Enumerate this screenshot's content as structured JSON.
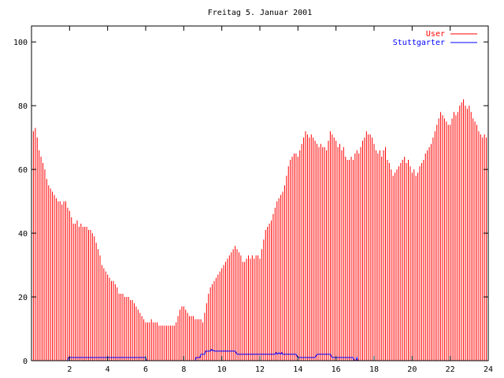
{
  "chart_data": {
    "type": "bar",
    "title": "Freitag 5. Januar 2001",
    "xlabel": "",
    "ylabel": "",
    "xlim": [
      0,
      24
    ],
    "ylim": [
      0,
      105
    ],
    "x_ticks": [
      2,
      4,
      6,
      8,
      10,
      12,
      14,
      16,
      18,
      20,
      22,
      24
    ],
    "y_ticks": [
      0,
      20,
      40,
      60,
      80,
      100
    ],
    "grid": false,
    "legend_position": "top-right",
    "series": [
      {
        "name": "User",
        "color": "#ff0000",
        "style": "impulses",
        "points": [
          [
            0.0,
            77
          ],
          [
            0.1,
            72
          ],
          [
            0.2,
            73
          ],
          [
            0.3,
            70
          ],
          [
            0.4,
            66
          ],
          [
            0.5,
            64
          ],
          [
            0.6,
            62
          ],
          [
            0.7,
            60
          ],
          [
            0.8,
            57
          ],
          [
            0.9,
            55
          ],
          [
            1.0,
            54
          ],
          [
            1.1,
            53
          ],
          [
            1.2,
            52
          ],
          [
            1.3,
            51
          ],
          [
            1.4,
            50
          ],
          [
            1.5,
            50
          ],
          [
            1.6,
            49
          ],
          [
            1.7,
            50
          ],
          [
            1.8,
            50
          ],
          [
            1.9,
            48
          ],
          [
            2.0,
            47
          ],
          [
            2.1,
            45
          ],
          [
            2.2,
            43
          ],
          [
            2.3,
            43
          ],
          [
            2.4,
            44
          ],
          [
            2.5,
            42
          ],
          [
            2.6,
            43
          ],
          [
            2.7,
            42
          ],
          [
            2.8,
            42
          ],
          [
            2.9,
            42
          ],
          [
            3.0,
            41
          ],
          [
            3.1,
            41
          ],
          [
            3.2,
            40
          ],
          [
            3.3,
            39
          ],
          [
            3.4,
            37
          ],
          [
            3.5,
            35
          ],
          [
            3.6,
            33
          ],
          [
            3.7,
            30
          ],
          [
            3.8,
            29
          ],
          [
            3.9,
            28
          ],
          [
            4.0,
            27
          ],
          [
            4.1,
            26
          ],
          [
            4.2,
            25
          ],
          [
            4.3,
            25
          ],
          [
            4.4,
            24
          ],
          [
            4.5,
            23
          ],
          [
            4.6,
            21
          ],
          [
            4.7,
            21
          ],
          [
            4.8,
            21
          ],
          [
            4.9,
            20
          ],
          [
            5.0,
            20
          ],
          [
            5.1,
            20
          ],
          [
            5.2,
            19
          ],
          [
            5.3,
            19
          ],
          [
            5.4,
            18
          ],
          [
            5.5,
            17
          ],
          [
            5.6,
            16
          ],
          [
            5.7,
            15
          ],
          [
            5.8,
            14
          ],
          [
            5.9,
            13
          ],
          [
            6.0,
            12
          ],
          [
            6.1,
            12
          ],
          [
            6.2,
            12
          ],
          [
            6.3,
            13
          ],
          [
            6.4,
            12
          ],
          [
            6.5,
            12
          ],
          [
            6.6,
            12
          ],
          [
            6.7,
            11
          ],
          [
            6.8,
            11
          ],
          [
            6.9,
            11
          ],
          [
            7.0,
            11
          ],
          [
            7.1,
            11
          ],
          [
            7.2,
            11
          ],
          [
            7.3,
            11
          ],
          [
            7.4,
            11
          ],
          [
            7.5,
            11
          ],
          [
            7.6,
            12
          ],
          [
            7.7,
            14
          ],
          [
            7.8,
            16
          ],
          [
            7.9,
            17
          ],
          [
            8.0,
            17
          ],
          [
            8.1,
            16
          ],
          [
            8.2,
            15
          ],
          [
            8.3,
            14
          ],
          [
            8.4,
            14
          ],
          [
            8.5,
            14
          ],
          [
            8.6,
            13
          ],
          [
            8.7,
            13
          ],
          [
            8.8,
            13
          ],
          [
            8.9,
            13
          ],
          [
            9.0,
            12
          ],
          [
            9.1,
            15
          ],
          [
            9.2,
            18
          ],
          [
            9.3,
            21
          ],
          [
            9.4,
            23
          ],
          [
            9.5,
            24
          ],
          [
            9.6,
            25
          ],
          [
            9.7,
            26
          ],
          [
            9.8,
            27
          ],
          [
            9.9,
            28
          ],
          [
            10.0,
            29
          ],
          [
            10.1,
            30
          ],
          [
            10.2,
            31
          ],
          [
            10.3,
            32
          ],
          [
            10.4,
            33
          ],
          [
            10.5,
            34
          ],
          [
            10.6,
            35
          ],
          [
            10.7,
            36
          ],
          [
            10.8,
            35
          ],
          [
            10.9,
            34
          ],
          [
            11.0,
            33
          ],
          [
            11.1,
            31
          ],
          [
            11.2,
            31
          ],
          [
            11.3,
            32
          ],
          [
            11.4,
            33
          ],
          [
            11.5,
            32
          ],
          [
            11.6,
            33
          ],
          [
            11.7,
            32
          ],
          [
            11.8,
            33
          ],
          [
            11.9,
            33
          ],
          [
            12.0,
            32
          ],
          [
            12.1,
            35
          ],
          [
            12.2,
            38
          ],
          [
            12.3,
            41
          ],
          [
            12.4,
            42
          ],
          [
            12.5,
            43
          ],
          [
            12.6,
            44
          ],
          [
            12.7,
            46
          ],
          [
            12.8,
            48
          ],
          [
            12.9,
            50
          ],
          [
            13.0,
            51
          ],
          [
            13.1,
            52
          ],
          [
            13.2,
            53
          ],
          [
            13.3,
            55
          ],
          [
            13.4,
            58
          ],
          [
            13.5,
            61
          ],
          [
            13.6,
            63
          ],
          [
            13.7,
            64
          ],
          [
            13.8,
            65
          ],
          [
            13.9,
            65
          ],
          [
            14.0,
            64
          ],
          [
            14.1,
            66
          ],
          [
            14.2,
            68
          ],
          [
            14.3,
            70
          ],
          [
            14.4,
            72
          ],
          [
            14.5,
            71
          ],
          [
            14.6,
            70
          ],
          [
            14.7,
            71
          ],
          [
            14.8,
            70
          ],
          [
            14.9,
            69
          ],
          [
            15.0,
            68
          ],
          [
            15.1,
            67
          ],
          [
            15.2,
            68
          ],
          [
            15.3,
            67
          ],
          [
            15.4,
            67
          ],
          [
            15.5,
            66
          ],
          [
            15.6,
            69
          ],
          [
            15.7,
            72
          ],
          [
            15.8,
            71
          ],
          [
            15.9,
            70
          ],
          [
            16.0,
            69
          ],
          [
            16.1,
            67
          ],
          [
            16.2,
            68
          ],
          [
            16.3,
            66
          ],
          [
            16.4,
            67
          ],
          [
            16.5,
            64
          ],
          [
            16.6,
            63
          ],
          [
            16.7,
            63
          ],
          [
            16.8,
            64
          ],
          [
            16.9,
            63
          ],
          [
            17.0,
            65
          ],
          [
            17.1,
            66
          ],
          [
            17.2,
            65
          ],
          [
            17.3,
            67
          ],
          [
            17.4,
            69
          ],
          [
            17.5,
            70
          ],
          [
            17.6,
            72
          ],
          [
            17.7,
            71
          ],
          [
            17.8,
            71
          ],
          [
            17.9,
            70
          ],
          [
            18.0,
            68
          ],
          [
            18.1,
            66
          ],
          [
            18.2,
            65
          ],
          [
            18.3,
            66
          ],
          [
            18.4,
            64
          ],
          [
            18.5,
            66
          ],
          [
            18.6,
            67
          ],
          [
            18.7,
            63
          ],
          [
            18.8,
            62
          ],
          [
            18.9,
            60
          ],
          [
            19.0,
            58
          ],
          [
            19.1,
            59
          ],
          [
            19.2,
            60
          ],
          [
            19.3,
            61
          ],
          [
            19.4,
            62
          ],
          [
            19.5,
            63
          ],
          [
            19.6,
            64
          ],
          [
            19.7,
            62
          ],
          [
            19.8,
            63
          ],
          [
            19.9,
            61
          ],
          [
            20.0,
            59
          ],
          [
            20.1,
            60
          ],
          [
            20.2,
            58
          ],
          [
            20.3,
            59
          ],
          [
            20.4,
            61
          ],
          [
            20.5,
            62
          ],
          [
            20.6,
            63
          ],
          [
            20.7,
            65
          ],
          [
            20.8,
            66
          ],
          [
            20.9,
            67
          ],
          [
            21.0,
            68
          ],
          [
            21.1,
            70
          ],
          [
            21.2,
            72
          ],
          [
            21.3,
            74
          ],
          [
            21.4,
            76
          ],
          [
            21.5,
            78
          ],
          [
            21.6,
            77
          ],
          [
            21.7,
            76
          ],
          [
            21.8,
            75
          ],
          [
            21.9,
            74
          ],
          [
            22.0,
            74
          ],
          [
            22.1,
            76
          ],
          [
            22.2,
            78
          ],
          [
            22.3,
            77
          ],
          [
            22.4,
            78
          ],
          [
            22.5,
            80
          ],
          [
            22.6,
            81
          ],
          [
            22.7,
            82
          ],
          [
            22.8,
            80
          ],
          [
            22.9,
            79
          ],
          [
            23.0,
            80
          ],
          [
            23.1,
            78
          ],
          [
            23.2,
            76
          ],
          [
            23.3,
            75
          ],
          [
            23.4,
            74
          ],
          [
            23.5,
            72
          ],
          [
            23.6,
            71
          ],
          [
            23.7,
            70
          ],
          [
            23.8,
            71
          ],
          [
            23.9,
            70
          ]
        ]
      },
      {
        "name": "Stuttgarter",
        "color": "#0000ff",
        "style": "line",
        "points": [
          [
            0,
            0
          ],
          [
            1.9,
            0
          ],
          [
            1.95,
            1
          ],
          [
            6.0,
            1
          ],
          [
            6.05,
            0
          ],
          [
            8.6,
            0
          ],
          [
            8.65,
            1
          ],
          [
            8.85,
            1
          ],
          [
            8.9,
            2
          ],
          [
            9.1,
            2
          ],
          [
            9.15,
            3
          ],
          [
            9.4,
            3
          ],
          [
            9.45,
            3.5
          ],
          [
            9.6,
            3
          ],
          [
            10.7,
            3
          ],
          [
            10.8,
            2
          ],
          [
            12.8,
            2
          ],
          [
            12.85,
            2.5
          ],
          [
            12.9,
            2
          ],
          [
            13.0,
            2.5
          ],
          [
            13.1,
            2
          ],
          [
            13.15,
            2.5
          ],
          [
            13.2,
            2
          ],
          [
            13.9,
            2
          ],
          [
            14.0,
            1
          ],
          [
            14.9,
            1
          ],
          [
            15.0,
            2
          ],
          [
            15.7,
            2
          ],
          [
            15.8,
            1
          ],
          [
            16.9,
            1
          ],
          [
            16.95,
            0
          ],
          [
            17.05,
            0
          ],
          [
            17.1,
            1
          ],
          [
            17.15,
            0
          ],
          [
            24,
            0
          ]
        ]
      }
    ]
  }
}
